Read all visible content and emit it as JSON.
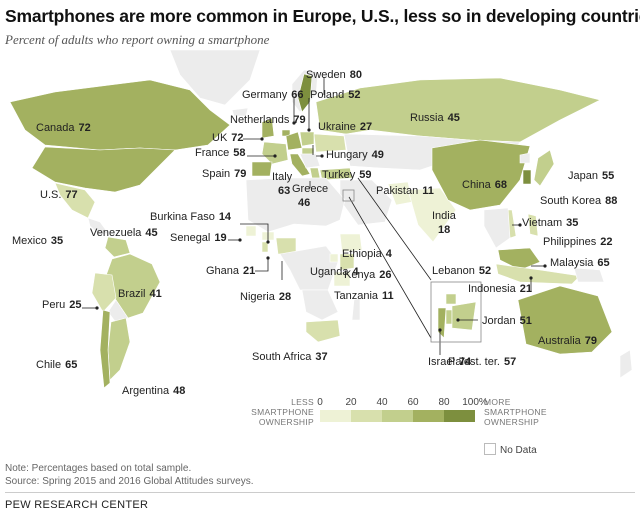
{
  "title": "Smartphones are more common in Europe, U.S., less so in developing countries",
  "subtitle": "Percent of adults who report owning a smartphone",
  "colors": {
    "land": "#ececec",
    "land_stroke": "#ffffff",
    "bins": [
      "#eef2d6",
      "#d8e0ad",
      "#c2cf8d",
      "#a3b160",
      "#7d8f3e"
    ]
  },
  "chart_data": {
    "type": "map",
    "metric": "Percent of adults who report owning a smartphone",
    "countries": [
      {
        "name": "Canada",
        "value": 72
      },
      {
        "name": "U.S.",
        "value": 77
      },
      {
        "name": "Mexico",
        "value": 35
      },
      {
        "name": "Venezuela",
        "value": 45
      },
      {
        "name": "Brazil",
        "value": 41
      },
      {
        "name": "Peru",
        "value": 25
      },
      {
        "name": "Chile",
        "value": 65
      },
      {
        "name": "Argentina",
        "value": 48
      },
      {
        "name": "Sweden",
        "value": 80
      },
      {
        "name": "Germany",
        "value": 66
      },
      {
        "name": "Poland",
        "value": 52
      },
      {
        "name": "Netherlands",
        "value": 79
      },
      {
        "name": "UK",
        "value": 72
      },
      {
        "name": "France",
        "value": 58
      },
      {
        "name": "Spain",
        "value": 79
      },
      {
        "name": "Italy",
        "value": 63
      },
      {
        "name": "Greece",
        "value": 46
      },
      {
        "name": "Ukraine",
        "value": 27
      },
      {
        "name": "Hungary",
        "value": 49
      },
      {
        "name": "Turkey",
        "value": 59
      },
      {
        "name": "Russia",
        "value": 45
      },
      {
        "name": "Pakistan",
        "value": 11
      },
      {
        "name": "India",
        "value": 18
      },
      {
        "name": "China",
        "value": 68
      },
      {
        "name": "Japan",
        "value": 55
      },
      {
        "name": "South Korea",
        "value": 88
      },
      {
        "name": "Vietnam",
        "value": 35
      },
      {
        "name": "Philippines",
        "value": 22
      },
      {
        "name": "Malaysia",
        "value": 65
      },
      {
        "name": "Indonesia",
        "value": 21
      },
      {
        "name": "Australia",
        "value": 79
      },
      {
        "name": "Burkina Faso",
        "value": 14
      },
      {
        "name": "Senegal",
        "value": 19
      },
      {
        "name": "Ghana",
        "value": 21
      },
      {
        "name": "Nigeria",
        "value": 28
      },
      {
        "name": "Ethiopia",
        "value": 4
      },
      {
        "name": "Uganda",
        "value": 4
      },
      {
        "name": "Kenya",
        "value": 26
      },
      {
        "name": "Tanzania",
        "value": 11
      },
      {
        "name": "South Africa",
        "value": 37
      },
      {
        "name": "Lebanon",
        "value": 52
      },
      {
        "name": "Jordan",
        "value": 51
      },
      {
        "name": "Israel",
        "value": 74
      },
      {
        "name": "Palest. ter.",
        "value": 57
      }
    ],
    "legend": {
      "left_label": "LESS SMARTPHONE OWNERSHIP",
      "right_label": "MORE SMARTPHONE OWNERSHIP",
      "ticks": [
        "0",
        "20",
        "40",
        "60",
        "80",
        "100%"
      ],
      "no_data": "No Data"
    }
  },
  "note": "Note: Percentages based on total sample.",
  "source_line": "Source: Spring 2015 and 2016 Global Attitudes surveys.",
  "footer": "PEW RESEARCH CENTER"
}
